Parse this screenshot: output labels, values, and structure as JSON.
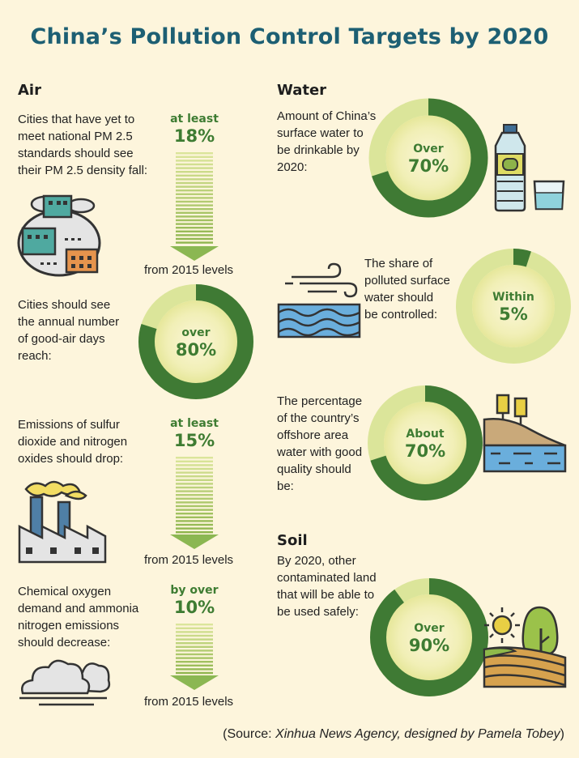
{
  "title": "China’s Pollution Control Targets by 2020",
  "sections": {
    "air": "Air",
    "water": "Water",
    "soil": "Soil"
  },
  "air": {
    "items": [
      {
        "text_lines": [
          "Cities that have yet to",
          "meet  national PM 2.5",
          "standards should see",
          "their PM 2.5 density fall:"
        ],
        "label_line1": "at least",
        "label_line2": "18%",
        "footer": "from 2015 levels"
      },
      {
        "text_lines": [
          "Cities should see",
          "the annual number",
          "of good-air days",
          "reach:"
        ],
        "label_line1": "over",
        "label_line2": "80%"
      },
      {
        "text_lines": [
          "Emissions of sulfur",
          "dioxide and nitrogen",
          "oxides should drop:"
        ],
        "label_line1": "at least",
        "label_line2": "15%",
        "footer": "from 2015 levels"
      },
      {
        "text_lines": [
          "Chemical oxygen",
          "demand and ammonia",
          "nitrogen emissions",
          "should decrease:"
        ],
        "label_line1": "by over",
        "label_line2": "10%",
        "footer": "from 2015 levels"
      }
    ]
  },
  "water": {
    "items": [
      {
        "text_lines": [
          "Amount of China’s",
          "surface water to",
          "be drinkable by",
          "2020:"
        ],
        "label_line1": "Over",
        "label_line2": "70%"
      },
      {
        "text_lines": [
          "The share of",
          "polluted surface",
          "water should",
          "be controlled:"
        ],
        "label_line1": "Within",
        "label_line2": "5%"
      },
      {
        "text_lines": [
          "The percentage",
          "of the country’s",
          "offshore area",
          "water with good",
          "quality should",
          "be:"
        ],
        "label_line1": "About",
        "label_line2": "70%"
      }
    ]
  },
  "soil": {
    "items": [
      {
        "text_lines": [
          "By 2020, other",
          "contaminated land",
          "that will be able to",
          "be used safely:"
        ],
        "label_line1": "Over",
        "label_line2": "90%"
      }
    ]
  },
  "source": {
    "prefix": "(Source: ",
    "italic": "Xinhua News Agency, designed by Pamela Tobey",
    "suffix": ")"
  },
  "chart_data": [
    {
      "type": "bar",
      "group": "Air",
      "label": "at least 18%",
      "values": [
        18
      ],
      "unit": "%",
      "comparison": "from 2015 levels"
    },
    {
      "type": "pie",
      "group": "Air",
      "label": "over 80%",
      "values": [
        80
      ],
      "unit": "%"
    },
    {
      "type": "bar",
      "group": "Air",
      "label": "at least 15%",
      "values": [
        15
      ],
      "unit": "%",
      "comparison": "from 2015 levels"
    },
    {
      "type": "bar",
      "group": "Air",
      "label": "by over 10%",
      "values": [
        10
      ],
      "unit": "%",
      "comparison": "from 2015 levels"
    },
    {
      "type": "pie",
      "group": "Water",
      "label": "Over 70%",
      "values": [
        70
      ],
      "unit": "%"
    },
    {
      "type": "pie",
      "group": "Water",
      "label": "Within 5%",
      "values": [
        5
      ],
      "unit": "%"
    },
    {
      "type": "pie",
      "group": "Water",
      "label": "About 70%",
      "values": [
        70
      ],
      "unit": "%"
    },
    {
      "type": "pie",
      "group": "Soil",
      "label": "Over 90%",
      "values": [
        90
      ],
      "unit": "%"
    }
  ],
  "colors": {
    "title": "#1d5f73",
    "dark_green": "#3f7a34",
    "light_green": "#dbe59a",
    "label_green": "#3e7c32",
    "background": "#fdf5dc"
  }
}
